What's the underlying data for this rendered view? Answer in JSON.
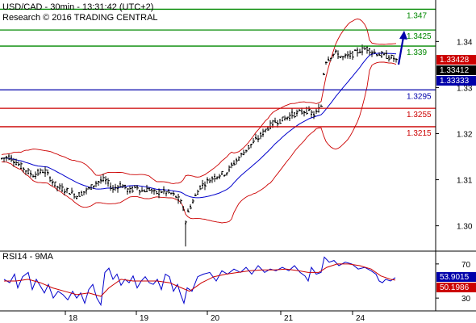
{
  "header": {
    "line1": "USD/CAD - 30min - 13:31:42 (UTC+2)",
    "line2": "Research © 2016 TRADING CENTRAL"
  },
  "rsi": {
    "title": "RSI14 - 9MA"
  },
  "colors": {
    "green": "#008800",
    "red": "#cc0000",
    "blue": "#0000aa",
    "bb": "#cc0000",
    "ma": "#0000cc",
    "candle": "#000000",
    "rsi": "#0000cc",
    "rsi_ma": "#cc0000",
    "axis": "#000000"
  },
  "chart_data": [
    {
      "type": "candlestick",
      "y_ticks": [
        1.3,
        1.31,
        1.32,
        1.33,
        1.34
      ],
      "y_tick_labels": [
        "1.30",
        "1.31",
        "1.32",
        "1.33",
        "1.34"
      ],
      "ylim": [
        1.2945,
        1.349
      ],
      "x_tick_labels": [
        "18",
        "19",
        "20",
        "21",
        "24"
      ],
      "levels": [
        {
          "label": "1.347",
          "value": 1.347,
          "color": "green"
        },
        {
          "label": "1.3425",
          "value": 1.3425,
          "color": "green"
        },
        {
          "label": "1.339",
          "value": 1.339,
          "color": "green"
        },
        {
          "label": "1.3295",
          "value": 1.3295,
          "color": "blue"
        },
        {
          "label": "1.3255",
          "value": 1.3255,
          "color": "red"
        },
        {
          "label": "1.3215",
          "value": 1.3215,
          "color": "red"
        }
      ],
      "price_tags": [
        {
          "label": "1.33428",
          "value": 1.33428,
          "bg": "#cc0000",
          "fg": "#ffffff"
        },
        {
          "label": "1.33412",
          "value": 1.33412,
          "bg": "#000000",
          "fg": "#ffffff"
        },
        {
          "label": "1.33333",
          "value": 1.33333,
          "bg": "#0000aa",
          "fg": "#ffffff"
        }
      ],
      "close_path": [
        [
          0,
          1.3145
        ],
        [
          12,
          1.315
        ],
        [
          25,
          1.313
        ],
        [
          40,
          1.311
        ],
        [
          55,
          1.312
        ],
        [
          70,
          1.3085
        ],
        [
          85,
          1.3075
        ],
        [
          95,
          1.3065
        ],
        [
          110,
          1.308
        ],
        [
          120,
          1.3095
        ],
        [
          130,
          1.31
        ],
        [
          140,
          1.308
        ],
        [
          150,
          1.309
        ],
        [
          160,
          1.3075
        ],
        [
          170,
          1.3085
        ],
        [
          175,
          1.3075
        ],
        [
          185,
          1.308
        ],
        [
          192,
          1.307
        ],
        [
          200,
          1.3075
        ],
        [
          212,
          1.307
        ],
        [
          220,
          1.306
        ],
        [
          226,
          1.3045
        ],
        [
          230,
          1.301
        ],
        [
          234,
          1.3035
        ],
        [
          238,
          1.305
        ],
        [
          248,
          1.3085
        ],
        [
          260,
          1.31
        ],
        [
          270,
          1.311
        ],
        [
          280,
          1.3115
        ],
        [
          292,
          1.314
        ],
        [
          300,
          1.3155
        ],
        [
          310,
          1.3175
        ],
        [
          320,
          1.319
        ],
        [
          330,
          1.321
        ],
        [
          340,
          1.3225
        ],
        [
          350,
          1.323
        ],
        [
          360,
          1.324
        ],
        [
          370,
          1.3245
        ],
        [
          380,
          1.325
        ],
        [
          390,
          1.324
        ],
        [
          398,
          1.326
        ],
        [
          402,
          1.3355
        ],
        [
          408,
          1.3365
        ],
        [
          415,
          1.3375
        ],
        [
          425,
          1.3365
        ],
        [
          435,
          1.337
        ],
        [
          445,
          1.338
        ],
        [
          455,
          1.3385
        ],
        [
          465,
          1.3375
        ],
        [
          475,
          1.337
        ],
        [
          485,
          1.3365
        ],
        [
          490,
          1.3362
        ],
        [
          494,
          1.3348
        ]
      ],
      "projection": [
        [
          494,
          1.335
        ],
        [
          500,
          1.342
        ]
      ]
    },
    {
      "type": "line",
      "title": "RSI14 - 9MA",
      "y_ticks": [
        30,
        70
      ],
      "y_tick_labels": [
        "30",
        "70"
      ],
      "ylim": [
        15,
        85
      ],
      "value_tags": [
        {
          "label": "53.9015",
          "value": 53.9015,
          "bg": "#0000aa",
          "fg": "#ffffff"
        },
        {
          "label": "50.1986",
          "value": 50.1986,
          "bg": "#cc0000",
          "fg": "#ffffff"
        }
      ],
      "series": [
        {
          "name": "RSI14",
          "color": "rsi",
          "points": [
            [
              5,
              52
            ],
            [
              12,
              48
            ],
            [
              18,
              58
            ],
            [
              22,
              42
            ],
            [
              28,
              55
            ],
            [
              35,
              60
            ],
            [
              40,
              40
            ],
            [
              45,
              52
            ],
            [
              50,
              44
            ],
            [
              55,
              36
            ],
            [
              60,
              46
            ],
            [
              66,
              30
            ],
            [
              72,
              38
            ],
            [
              78,
              34
            ],
            [
              84,
              28
            ],
            [
              90,
              38
            ],
            [
              95,
              30
            ],
            [
              100,
              36
            ],
            [
              105,
              24
            ],
            [
              110,
              40
            ],
            [
              115,
              46
            ],
            [
              120,
              30
            ],
            [
              125,
              22
            ],
            [
              130,
              60
            ],
            [
              135,
              65
            ],
            [
              140,
              52
            ],
            [
              145,
              58
            ],
            [
              150,
              45
            ],
            [
              155,
              52
            ],
            [
              160,
              48
            ],
            [
              165,
              56
            ],
            [
              170,
              42
            ],
            [
              175,
              50
            ],
            [
              180,
              55
            ],
            [
              185,
              48
            ],
            [
              190,
              46
            ],
            [
              195,
              52
            ],
            [
              200,
              40
            ],
            [
              205,
              58
            ],
            [
              210,
              55
            ],
            [
              215,
              38
            ],
            [
              220,
              46
            ],
            [
              224,
              34
            ],
            [
              228,
              24
            ],
            [
              232,
              42
            ],
            [
              238,
              38
            ],
            [
              245,
              55
            ],
            [
              252,
              58
            ],
            [
              260,
              60
            ],
            [
              268,
              50
            ],
            [
              275,
              62
            ],
            [
              282,
              58
            ],
            [
              290,
              64
            ],
            [
              298,
              60
            ],
            [
              305,
              66
            ],
            [
              312,
              58
            ],
            [
              320,
              68
            ],
            [
              328,
              60
            ],
            [
              335,
              64
            ],
            [
              342,
              62
            ],
            [
              350,
              66
            ],
            [
              358,
              62
            ],
            [
              365,
              68
            ],
            [
              372,
              60
            ],
            [
              378,
              56
            ],
            [
              382,
              50
            ],
            [
              386,
              66
            ],
            [
              392,
              58
            ],
            [
              398,
              60
            ],
            [
              402,
              78
            ],
            [
              408,
              72
            ],
            [
              414,
              74
            ],
            [
              420,
              68
            ],
            [
              428,
              72
            ],
            [
              436,
              70
            ],
            [
              444,
              64
            ],
            [
              452,
              66
            ],
            [
              460,
              62
            ],
            [
              466,
              58
            ],
            [
              470,
              50
            ],
            [
              474,
              48
            ],
            [
              478,
              52
            ],
            [
              484,
              50
            ],
            [
              490,
              54
            ]
          ]
        },
        {
          "name": "9MA",
          "color": "rsi_ma",
          "points": [
            [
              5,
              50
            ],
            [
              20,
              50
            ],
            [
              35,
              52
            ],
            [
              50,
              48
            ],
            [
              65,
              42
            ],
            [
              80,
              38
            ],
            [
              95,
              34
            ],
            [
              110,
              36
            ],
            [
              125,
              32
            ],
            [
              135,
              42
            ],
            [
              150,
              52
            ],
            [
              165,
              50
            ],
            [
              180,
              50
            ],
            [
              195,
              50
            ],
            [
              210,
              48
            ],
            [
              225,
              42
            ],
            [
              235,
              38
            ],
            [
              250,
              48
            ],
            [
              265,
              55
            ],
            [
              280,
              58
            ],
            [
              295,
              60
            ],
            [
              310,
              62
            ],
            [
              325,
              63
            ],
            [
              340,
              63
            ],
            [
              355,
              64
            ],
            [
              370,
              62
            ],
            [
              382,
              60
            ],
            [
              395,
              60
            ],
            [
              405,
              66
            ],
            [
              418,
              70
            ],
            [
              432,
              70
            ],
            [
              446,
              68
            ],
            [
              460,
              64
            ],
            [
              472,
              56
            ],
            [
              484,
              52
            ],
            [
              490,
              51
            ]
          ]
        }
      ]
    }
  ]
}
